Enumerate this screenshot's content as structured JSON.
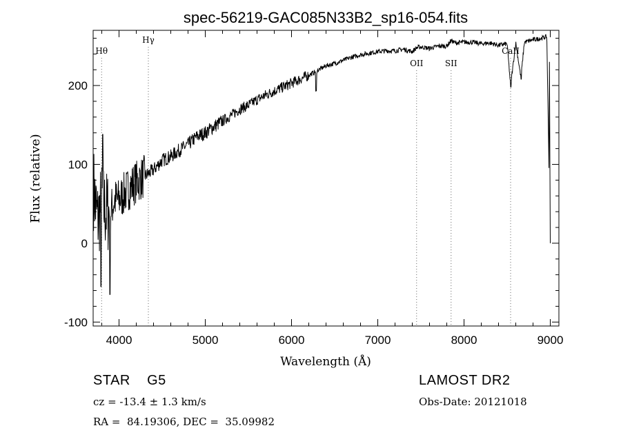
{
  "chart_data": {
    "type": "line",
    "title": "spec-56219-GAC085N33B2_sp16-054.fits",
    "xlabel": "Wavelength (Å)",
    "ylabel": "Flux (relative)",
    "xlim": [
      3700,
      9100
    ],
    "ylim": [
      -105,
      270
    ],
    "xticks": [
      4000,
      5000,
      6000,
      7000,
      8000,
      9000
    ],
    "yticks": [
      -100,
      0,
      100,
      200
    ],
    "x": [
      3700,
      3750,
      3800,
      3850,
      3900,
      3950,
      4000,
      4100,
      4200,
      4300,
      4400,
      4500,
      4600,
      4700,
      4800,
      4900,
      5000,
      5100,
      5200,
      5300,
      5400,
      5500,
      5600,
      5700,
      5800,
      5900,
      6000,
      6100,
      6200,
      6300,
      6400,
      6500,
      6600,
      6700,
      6800,
      6900,
      7000,
      7100,
      7200,
      7300,
      7400,
      7450,
      7500,
      7600,
      7700,
      7800,
      7850,
      7900,
      8000,
      8100,
      8200,
      8300,
      8400,
      8500,
      8540,
      8600,
      8660,
      8700,
      8800,
      8900,
      8960,
      9000
    ],
    "y": [
      75,
      30,
      50,
      40,
      40,
      55,
      55,
      68,
      78,
      85,
      93,
      105,
      110,
      118,
      125,
      135,
      140,
      148,
      155,
      162,
      170,
      175,
      182,
      188,
      193,
      198,
      203,
      208,
      213,
      219,
      225,
      228,
      232,
      236,
      239,
      241,
      243,
      244,
      244,
      246,
      243,
      248,
      249,
      247,
      250,
      250,
      257,
      254,
      255,
      255,
      253,
      254,
      251,
      253,
      200,
      254,
      210,
      255,
      258,
      260,
      262,
      0
    ],
    "series": [
      {
        "values": [
          75,
          30,
          50,
          40,
          40,
          55,
          55,
          68,
          78,
          85,
          93,
          105,
          110,
          118,
          125,
          135,
          140,
          148,
          155,
          162,
          170,
          175,
          182,
          188,
          193,
          198,
          203,
          208,
          213,
          219,
          225,
          228,
          232,
          236,
          239,
          241,
          243,
          244,
          244,
          246,
          243,
          248,
          249,
          247,
          250,
          250,
          257,
          254,
          255,
          255,
          253,
          254,
          251,
          253,
          200,
          254,
          210,
          255,
          258,
          260,
          262,
          0
        ]
      }
    ],
    "lines": [
      {
        "label": "Hθ",
        "x": 3798
      },
      {
        "label": "Hγ",
        "x": 4340
      },
      {
        "label": "OII",
        "x": 7450
      },
      {
        "label": "SII",
        "x": 7850
      },
      {
        "label": "CaII",
        "x": 8540
      }
    ],
    "grid": false
  },
  "info": {
    "class": "STAR    G5",
    "survey": "LAMOST DR2",
    "cz": "cz = -13.4 ± 1.3 km/s",
    "obs_date": "Obs-Date: 20121018",
    "radec": "RA =  84.19306, DEC =  35.09982"
  }
}
